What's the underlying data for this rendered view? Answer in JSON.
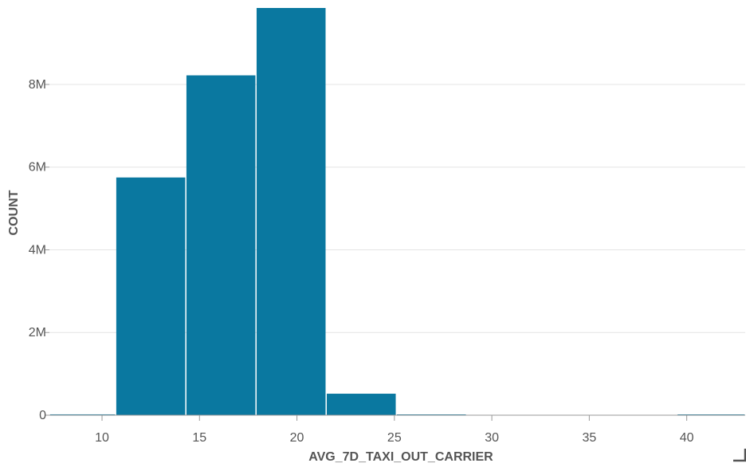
{
  "chart_data": {
    "type": "bar",
    "xlabel": "AVG_7D_TAXI_OUT_CARRIER",
    "ylabel": "COUNT",
    "xlim": [
      7.3,
      43
    ],
    "ylim": [
      0,
      9.85
    ],
    "x_ticks": [
      10,
      15,
      20,
      25,
      30,
      35,
      40
    ],
    "x_tick_labels": [
      "10",
      "15",
      "20",
      "25",
      "30",
      "35",
      "40"
    ],
    "y_ticks": [
      0,
      2,
      4,
      6,
      8
    ],
    "y_tick_labels": [
      "0",
      "2M",
      "4M",
      "6M",
      "8M"
    ],
    "y_unit": "millions",
    "grid": true,
    "bar_color": "#0a78a0",
    "bins": [
      {
        "x0": 7.3,
        "x1": 10.7,
        "value": 0.02
      },
      {
        "x0": 10.7,
        "x1": 14.3,
        "value": 5.75
      },
      {
        "x0": 14.3,
        "x1": 17.9,
        "value": 8.22
      },
      {
        "x0": 17.9,
        "x1": 21.5,
        "value": 9.85
      },
      {
        "x0": 21.5,
        "x1": 25.1,
        "value": 0.52
      },
      {
        "x0": 25.1,
        "x1": 28.7,
        "value": 0.01
      },
      {
        "x0": 28.7,
        "x1": 32.3,
        "value": 0.0
      },
      {
        "x0": 32.3,
        "x1": 35.9,
        "value": 0.0
      },
      {
        "x0": 35.9,
        "x1": 39.5,
        "value": 0.0
      },
      {
        "x0": 39.5,
        "x1": 43.0,
        "value": 0.01
      }
    ]
  }
}
